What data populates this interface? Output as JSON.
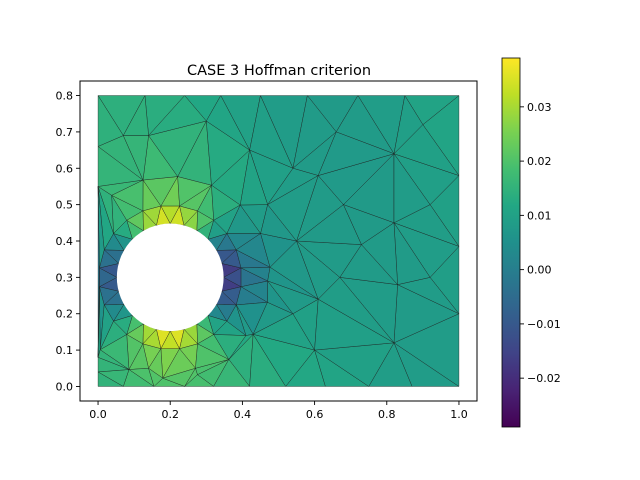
{
  "chart_data": {
    "type": "heatmap",
    "subtype": "triangular mesh field (tripcolor)",
    "title": "CASE 3 Hoffman criterion",
    "xlabel": "",
    "ylabel": "",
    "xlim": [
      -0.05,
      1.05
    ],
    "ylim": [
      -0.04,
      0.84
    ],
    "xticks": [
      0.0,
      0.2,
      0.4,
      0.6,
      0.8,
      1.0
    ],
    "xtick_labels": [
      "0.0",
      "0.2",
      "0.4",
      "0.6",
      "0.8",
      "1.0"
    ],
    "yticks": [
      0.0,
      0.1,
      0.2,
      0.3,
      0.4,
      0.5,
      0.6,
      0.7,
      0.8
    ],
    "ytick_labels": [
      "0.0",
      "0.1",
      "0.2",
      "0.3",
      "0.4",
      "0.5",
      "0.6",
      "0.7",
      "0.8"
    ],
    "domain": {
      "x": [
        0.0,
        1.0
      ],
      "y": [
        0.0,
        0.8
      ]
    },
    "hole": {
      "center": [
        0.2,
        0.3
      ],
      "radius": 0.148
    },
    "colormap": "viridis",
    "colorbar": {
      "vmin": -0.029,
      "vmax": 0.039,
      "ticks": [
        -0.02,
        -0.01,
        0.0,
        0.01,
        0.02,
        0.03
      ],
      "tick_labels": [
        "−0.02",
        "−0.01",
        "0.00",
        "0.01",
        "0.02",
        "0.03"
      ]
    },
    "field_summary": {
      "background": 0.011,
      "peak_positive_regions": [
        "top of hole (near x≈0.2, y≈0.45)",
        "bottom of hole (near x≈0.2, y≈0.15)"
      ],
      "peak_negative_regions": [
        "right side of hole (near x≈0.36, y≈0.3)",
        "left edge (near x≈0.0, y≈0.3)"
      ]
    },
    "grid": false
  }
}
